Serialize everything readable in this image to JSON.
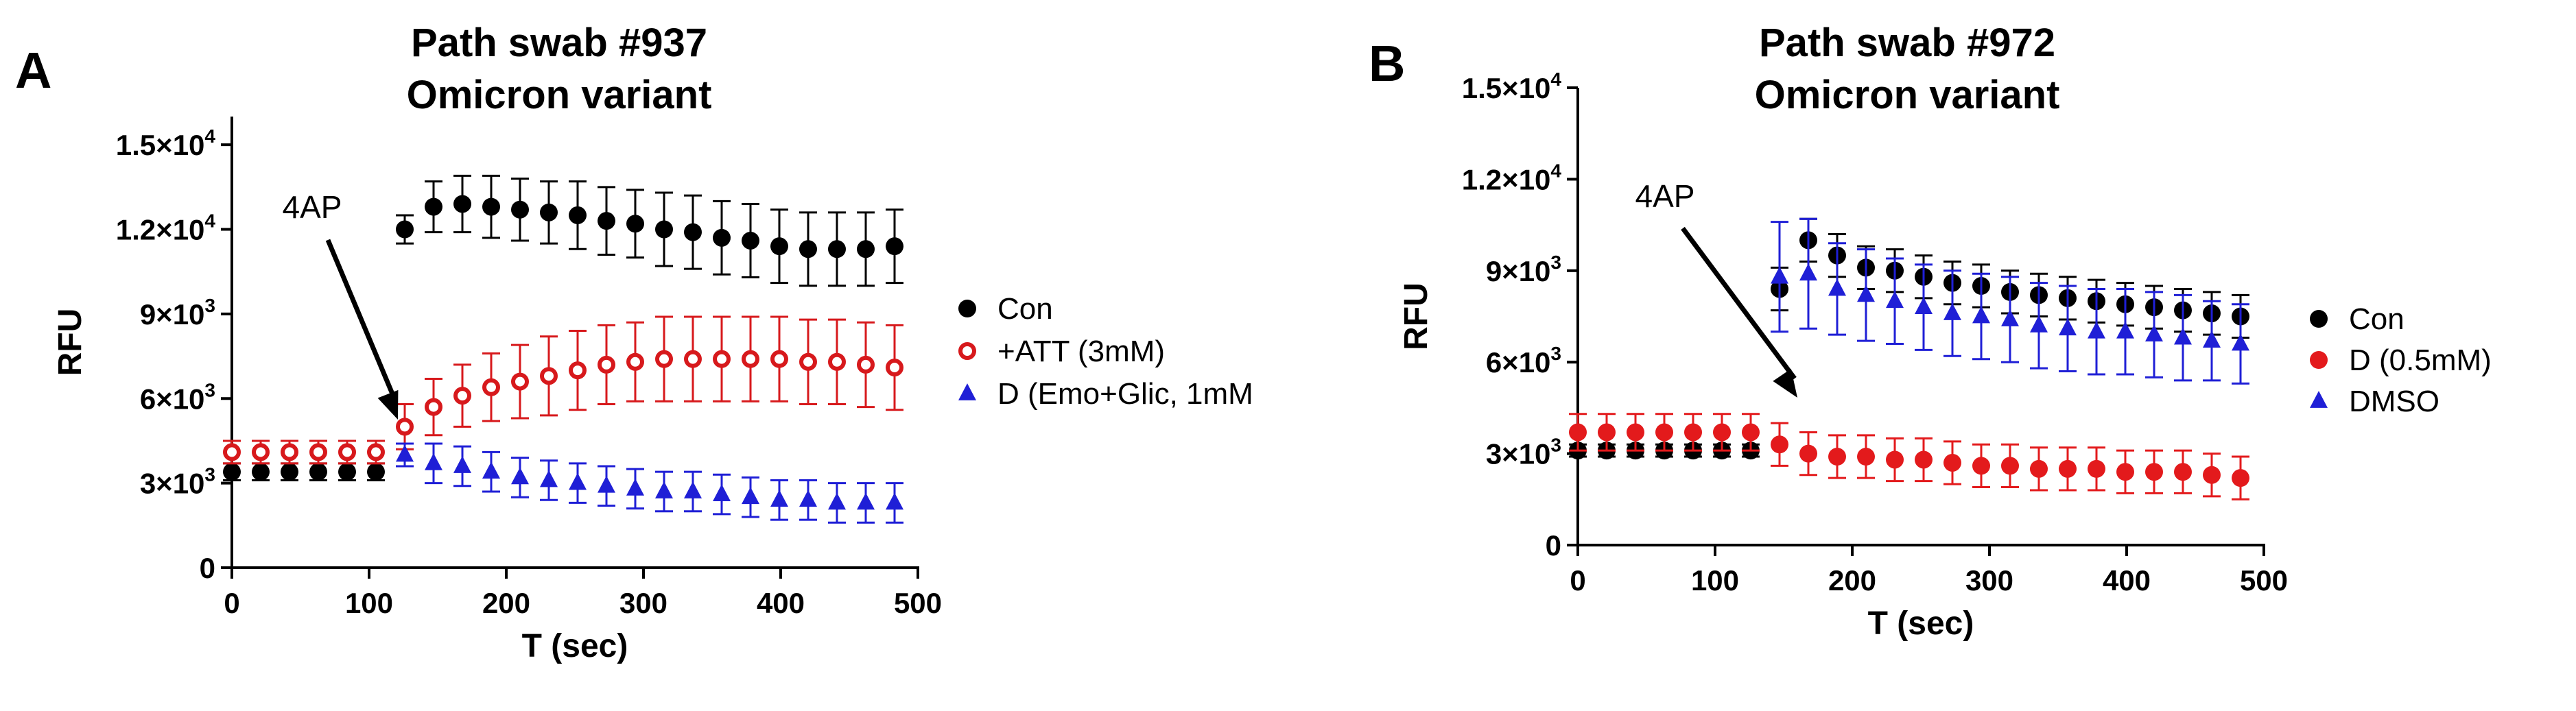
{
  "chart_data": [
    {
      "type": "scatter",
      "panel": "A",
      "title": [
        "Path swab #937",
        "Omicron variant"
      ],
      "xlabel": "T (sec)",
      "ylabel": "RFU",
      "xlim": [
        0,
        500
      ],
      "ylim": [
        0,
        16000
      ],
      "xticks": [
        0,
        100,
        200,
        300,
        400,
        500
      ],
      "yticks": [
        {
          "value": 0,
          "base": "0",
          "exp": ""
        },
        {
          "value": 3000,
          "base": "3×10",
          "exp": "3"
        },
        {
          "value": 6000,
          "base": "6×10",
          "exp": "3"
        },
        {
          "value": 9000,
          "base": "9×10",
          "exp": "3"
        },
        {
          "value": 12000,
          "base": "1.2×10",
          "exp": "4"
        },
        {
          "value": 15000,
          "base": "1.5×10",
          "exp": "4"
        }
      ],
      "grid": false,
      "legend_position": "right",
      "annotation": {
        "text": "4AP",
        "x": 105,
        "y": 4000
      },
      "series": [
        {
          "name": "Con",
          "marker": "circle-filled",
          "color": "#000000",
          "x": [
            0,
            21,
            42,
            63,
            84,
            105,
            126,
            147,
            168,
            189,
            210,
            231,
            252,
            273,
            294,
            315,
            336,
            357,
            378,
            399,
            420,
            441,
            462,
            483
          ],
          "y": [
            3400,
            3400,
            3400,
            3400,
            3400,
            3400,
            12000,
            12800,
            12900,
            12800,
            12700,
            12600,
            12500,
            12300,
            12200,
            12000,
            11900,
            11700,
            11600,
            11400,
            11300,
            11300,
            11300,
            11400
          ],
          "err": [
            300,
            300,
            300,
            300,
            300,
            300,
            500,
            900,
            1000,
            1100,
            1100,
            1100,
            1200,
            1200,
            1200,
            1300,
            1300,
            1300,
            1300,
            1300,
            1300,
            1300,
            1300,
            1300
          ]
        },
        {
          "name": "+ATT (3mM)",
          "marker": "circle-open",
          "color": "#d7191c",
          "x": [
            0,
            21,
            42,
            63,
            84,
            105,
            126,
            147,
            168,
            189,
            210,
            231,
            252,
            273,
            294,
            315,
            336,
            357,
            378,
            399,
            420,
            441,
            462,
            483
          ],
          "y": [
            4100,
            4100,
            4100,
            4100,
            4100,
            4100,
            5000,
            5700,
            6100,
            6400,
            6600,
            6800,
            7000,
            7200,
            7300,
            7400,
            7400,
            7400,
            7400,
            7400,
            7300,
            7300,
            7200,
            7100
          ],
          "err": [
            400,
            400,
            400,
            400,
            400,
            400,
            800,
            1000,
            1100,
            1200,
            1300,
            1400,
            1400,
            1400,
            1400,
            1500,
            1500,
            1500,
            1500,
            1500,
            1500,
            1500,
            1500,
            1500
          ]
        },
        {
          "name": "D (Emo+Glic, 1mM",
          "marker": "triangle-filled",
          "color": "#1f1fd6",
          "x": [
            126,
            147,
            168,
            189,
            210,
            231,
            252,
            273,
            294,
            315,
            336,
            357,
            378,
            399,
            420,
            441,
            462,
            483
          ],
          "y": [
            4000,
            3700,
            3600,
            3400,
            3200,
            3100,
            3000,
            2900,
            2800,
            2700,
            2700,
            2600,
            2500,
            2400,
            2400,
            2300,
            2300,
            2300
          ],
          "err": [
            400,
            700,
            700,
            700,
            700,
            700,
            700,
            700,
            700,
            700,
            700,
            700,
            700,
            700,
            700,
            700,
            700,
            700
          ]
        }
      ]
    },
    {
      "type": "scatter",
      "panel": "B",
      "title": [
        "Path swab #972",
        "Omicron variant"
      ],
      "xlabel": "T (sec)",
      "ylabel": "RFU",
      "xlim": [
        0,
        500
      ],
      "ylim": [
        0,
        15000
      ],
      "xticks": [
        0,
        100,
        200,
        300,
        400,
        500
      ],
      "yticks": [
        {
          "value": 0,
          "base": "0",
          "exp": ""
        },
        {
          "value": 3000,
          "base": "3×10",
          "exp": "3"
        },
        {
          "value": 6000,
          "base": "6×10",
          "exp": "3"
        },
        {
          "value": 9000,
          "base": "9×10",
          "exp": "3"
        },
        {
          "value": 12000,
          "base": "1.2×10",
          "exp": "4"
        },
        {
          "value": 15000,
          "base": "1.5×10",
          "exp": "4"
        }
      ],
      "grid": false,
      "legend_position": "right",
      "annotation": {
        "text": "4AP",
        "x": 126,
        "y": 4200
      },
      "series": [
        {
          "name": "Con",
          "marker": "circle-filled",
          "color": "#000000",
          "x": [
            0,
            21,
            42,
            63,
            84,
            105,
            126,
            147,
            168,
            189,
            210,
            231,
            252,
            273,
            294,
            315,
            336,
            357,
            378,
            399,
            420,
            441,
            462,
            483
          ],
          "y": [
            3100,
            3100,
            3100,
            3100,
            3100,
            3100,
            3100,
            8400,
            10000,
            9500,
            9100,
            9000,
            8800,
            8600,
            8500,
            8300,
            8200,
            8100,
            8000,
            7900,
            7800,
            7700,
            7600,
            7500
          ],
          "err": [
            200,
            200,
            200,
            200,
            200,
            200,
            200,
            700,
            700,
            700,
            700,
            700,
            700,
            700,
            700,
            700,
            700,
            700,
            700,
            700,
            700,
            700,
            700,
            700
          ]
        },
        {
          "name": "D (0.5mM)",
          "marker": "circle-filled",
          "color": "#e31a1c",
          "x": [
            0,
            21,
            42,
            63,
            84,
            105,
            126,
            147,
            168,
            189,
            210,
            231,
            252,
            273,
            294,
            315,
            336,
            357,
            378,
            399,
            420,
            441,
            462,
            483
          ],
          "y": [
            3700,
            3700,
            3700,
            3700,
            3700,
            3700,
            3700,
            3300,
            3000,
            2900,
            2900,
            2800,
            2800,
            2700,
            2600,
            2600,
            2500,
            2500,
            2500,
            2400,
            2400,
            2400,
            2300,
            2200
          ],
          "err": [
            600,
            600,
            600,
            600,
            600,
            600,
            600,
            700,
            700,
            700,
            700,
            700,
            700,
            700,
            700,
            700,
            700,
            700,
            700,
            700,
            700,
            700,
            700,
            700
          ]
        },
        {
          "name": "DMSO",
          "marker": "triangle-filled",
          "color": "#1f1fd6",
          "x": [
            147,
            168,
            189,
            210,
            231,
            252,
            273,
            294,
            315,
            336,
            357,
            378,
            399,
            420,
            441,
            462,
            483
          ],
          "y": [
            8800,
            8900,
            8400,
            8200,
            8000,
            7800,
            7600,
            7500,
            7400,
            7200,
            7100,
            7000,
            7000,
            6900,
            6800,
            6700,
            6600
          ],
          "err": [
            1800,
            1800,
            1500,
            1500,
            1400,
            1400,
            1400,
            1400,
            1400,
            1400,
            1400,
            1400,
            1400,
            1400,
            1400,
            1300,
            1300
          ]
        }
      ]
    }
  ]
}
